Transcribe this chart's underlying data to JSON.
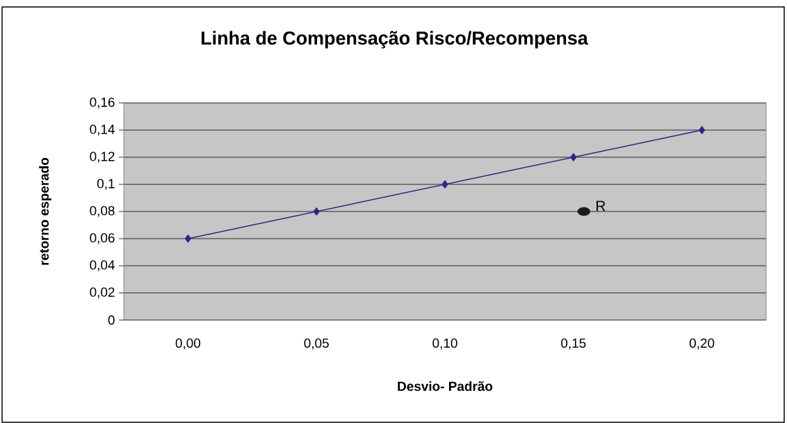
{
  "chart_data": {
    "type": "line",
    "title": "Linha de Compensação Risco/Recompensa",
    "xlabel": "Desvio- Padrão",
    "ylabel": "retorno esperado",
    "categories": [
      "0,00",
      "0,05",
      "0,10",
      "0,15",
      "0,20"
    ],
    "series": [
      {
        "color": "#3b1f8a",
        "marker": "diamond",
        "line_style": "solid",
        "values": [
          0.06,
          0.08,
          0.1,
          0.12,
          0.14
        ]
      },
      {
        "type": "scatter",
        "name": "R",
        "color": "#1a1a1a",
        "marker": "circle",
        "x": [
          "0,15"
        ],
        "values": [
          0.08
        ]
      }
    ],
    "ylim": [
      0,
      0.16
    ],
    "yticks": [
      0,
      {
        "value": 0.02,
        "label": "0,02"
      },
      {
        "value": 0.04,
        "label": "0,04"
      },
      {
        "value": 0.06,
        "label": "0,06"
      },
      {
        "value": 0.08,
        "label": "0,08"
      },
      {
        "value": 0.1,
        "label": "0,1"
      },
      {
        "value": 0.12,
        "label": "0,12"
      },
      {
        "value": 0.14,
        "label": "0,14"
      },
      {
        "value": 0.16,
        "label": "0,16"
      }
    ],
    "grid": "y"
  }
}
